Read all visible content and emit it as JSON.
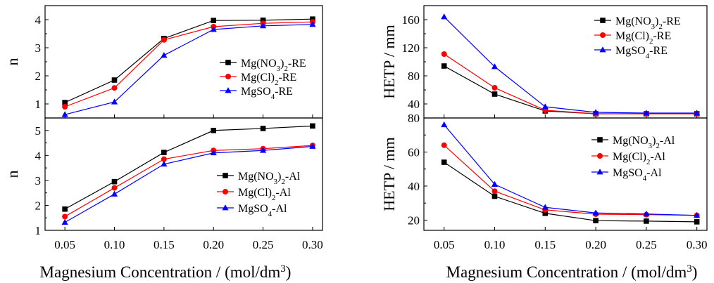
{
  "x_axis_label": {
    "main": "Magnesium Concentration / (mol/dm",
    "sup": "3",
    "close": ")"
  },
  "chart_data": [
    {
      "type": "line",
      "ylabel": "n",
      "ylim": [
        0.5,
        4.5
      ],
      "yticks": [
        1,
        2,
        3,
        4
      ],
      "x": [
        0.05,
        0.1,
        0.15,
        0.2,
        0.25,
        0.3
      ],
      "xticks": [
        "0.05",
        "0.10",
        "0.15",
        "0.20",
        "0.25",
        "0.30"
      ],
      "show_xticklabels": false,
      "legend": "right",
      "series": [
        {
          "name": "Mg(NO3)2-RE",
          "label": [
            [
              "Mg(NO",
              ""
            ],
            [
              "3",
              "sub"
            ],
            [
              ")",
              ""
            ],
            [
              "2",
              "sub"
            ],
            [
              "-RE",
              ""
            ]
          ],
          "color": "#000000",
          "marker": "square",
          "values": [
            1.05,
            1.85,
            3.33,
            3.97,
            3.98,
            4.02
          ]
        },
        {
          "name": "Mg(Cl)2-RE",
          "label": [
            [
              "Mg(Cl)",
              ""
            ],
            [
              "2",
              "sub"
            ],
            [
              "-RE",
              ""
            ]
          ],
          "color": "#ff0000",
          "marker": "circle",
          "values": [
            0.9,
            1.57,
            3.28,
            3.75,
            3.87,
            3.92
          ]
        },
        {
          "name": "MgSO4-RE",
          "label": [
            [
              "MgSO",
              ""
            ],
            [
              "4",
              "sub"
            ],
            [
              "-RE",
              ""
            ]
          ],
          "color": "#0000ff",
          "marker": "triangle",
          "values": [
            0.62,
            1.07,
            2.73,
            3.65,
            3.78,
            3.83
          ]
        }
      ]
    },
    {
      "type": "line",
      "ylabel": "n",
      "ylim": [
        1,
        5.5
      ],
      "yticks": [
        1,
        2,
        3,
        4,
        5
      ],
      "x": [
        0.05,
        0.1,
        0.15,
        0.2,
        0.25,
        0.3
      ],
      "xticks": [
        "0.05",
        "0.10",
        "0.15",
        "0.20",
        "0.25",
        "0.30"
      ],
      "show_xticklabels": true,
      "legend": "bottom-right",
      "series": [
        {
          "name": "Mg(NO3)2-Al",
          "label": [
            [
              "Mg(NO",
              ""
            ],
            [
              "3",
              "sub"
            ],
            [
              ")",
              ""
            ],
            [
              "2",
              "sub"
            ],
            [
              "-Al",
              ""
            ]
          ],
          "color": "#000000",
          "marker": "square",
          "values": [
            1.85,
            2.95,
            4.12,
            5.0,
            5.08,
            5.18
          ]
        },
        {
          "name": "Mg(Cl)2-Al",
          "label": [
            [
              "Mg(Cl)",
              ""
            ],
            [
              "2",
              "sub"
            ],
            [
              "-Al",
              ""
            ]
          ],
          "color": "#ff0000",
          "marker": "circle",
          "values": [
            1.55,
            2.7,
            3.85,
            4.2,
            4.27,
            4.4
          ]
        },
        {
          "name": "MgSO4-Al",
          "label": [
            [
              "MgSO",
              ""
            ],
            [
              "4",
              "sub"
            ],
            [
              "-Al",
              ""
            ]
          ],
          "color": "#0000ff",
          "marker": "triangle",
          "values": [
            1.32,
            2.45,
            3.65,
            4.1,
            4.2,
            4.36
          ]
        }
      ]
    },
    {
      "type": "line",
      "ylabel": "HETP / mm",
      "ylim": [
        20,
        180
      ],
      "yticks": [
        40,
        80,
        120,
        160
      ],
      "x": [
        0.05,
        0.1,
        0.15,
        0.2,
        0.25,
        0.3
      ],
      "xticks": [
        "0.05",
        "0.10",
        "0.15",
        "0.20",
        "0.25",
        "0.30"
      ],
      "show_xticklabels": false,
      "legend": "top-right",
      "series": [
        {
          "name": "Mg(NO3)2-RE",
          "label": [
            [
              "Mg(NO",
              ""
            ],
            [
              "3",
              "sub"
            ],
            [
              ")",
              ""
            ],
            [
              "2",
              "sub"
            ],
            [
              "-RE",
              ""
            ]
          ],
          "color": "#000000",
          "marker": "square",
          "values": [
            94,
            54,
            30,
            26,
            26,
            26
          ]
        },
        {
          "name": "Mg(Cl)2-RE",
          "label": [
            [
              "Mg(Cl)",
              ""
            ],
            [
              "2",
              "sub"
            ],
            [
              "-RE",
              ""
            ]
          ],
          "color": "#ff0000",
          "marker": "circle",
          "values": [
            111,
            63,
            31,
            26,
            26,
            26
          ]
        },
        {
          "name": "MgSO4-RE",
          "label": [
            [
              "MgSO",
              ""
            ],
            [
              "4",
              "sub"
            ],
            [
              "-RE",
              ""
            ]
          ],
          "color": "#0000ff",
          "marker": "triangle",
          "values": [
            164,
            93,
            36,
            28,
            27,
            27
          ]
        }
      ]
    },
    {
      "type": "line",
      "ylabel": "HETP / mm",
      "ylim": [
        14,
        80
      ],
      "yticks": [
        20,
        40,
        60,
        80
      ],
      "x": [
        0.05,
        0.1,
        0.15,
        0.2,
        0.25,
        0.3
      ],
      "xticks": [
        "0.05",
        "0.10",
        "0.15",
        "0.20",
        "0.25",
        "0.30"
      ],
      "show_xticklabels": true,
      "legend": "top-right",
      "series": [
        {
          "name": "Mg(NO3)2-Al",
          "label": [
            [
              "Mg(NO",
              ""
            ],
            [
              "3",
              "sub"
            ],
            [
              ")",
              ""
            ],
            [
              "2",
              "sub"
            ],
            [
              "-Al",
              ""
            ]
          ],
          "color": "#000000",
          "marker": "square",
          "values": [
            54,
            34,
            24,
            19.7,
            19.4,
            19
          ]
        },
        {
          "name": "Mg(Cl)2-Al",
          "label": [
            [
              "Mg(Cl)",
              ""
            ],
            [
              "2",
              "sub"
            ],
            [
              "-Al",
              ""
            ]
          ],
          "color": "#ff0000",
          "marker": "circle",
          "values": [
            64,
            37,
            26,
            23.5,
            23.2,
            22.8
          ]
        },
        {
          "name": "MgSO4-Al",
          "label": [
            [
              "MgSO",
              ""
            ],
            [
              "4",
              "sub"
            ],
            [
              "-Al",
              ""
            ]
          ],
          "color": "#0000ff",
          "marker": "triangle",
          "values": [
            76,
            41,
            27.5,
            24.2,
            23.6,
            22.8
          ]
        }
      ]
    }
  ]
}
